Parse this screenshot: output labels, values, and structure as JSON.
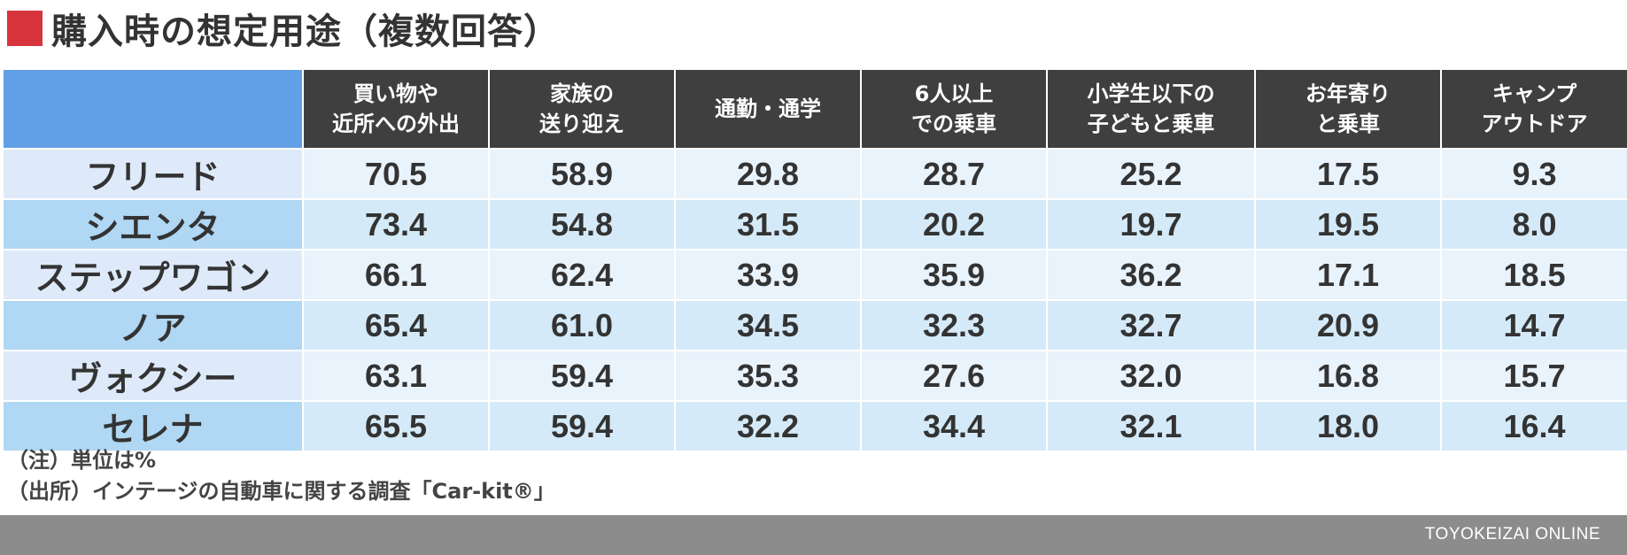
{
  "title": "購入時の想定用途（複数回答）",
  "colors": {
    "title_marker": "#d7343d",
    "corner_header": "#62a0e6",
    "column_header": "#3f3f3f",
    "row_label_light": "#deeaf9",
    "row_label_dark": "#b0d7f3",
    "cell_light": "#e9f3fc",
    "cell_dark": "#d5eaf8",
    "footer": "#8c8c8c"
  },
  "columns": [
    {
      "lines": [
        "買い物や",
        "近所への外出"
      ]
    },
    {
      "lines": [
        "家族の",
        "送り迎え"
      ]
    },
    {
      "lines": [
        "通勤・通学"
      ]
    },
    {
      "lines": [
        "6人以上",
        "での乗車"
      ]
    },
    {
      "lines": [
        "小学生以下の",
        "子どもと乗車"
      ]
    },
    {
      "lines": [
        "お年寄り",
        "と乗車"
      ]
    },
    {
      "lines": [
        "キャンプ",
        "アウトドア"
      ]
    }
  ],
  "chart_data": {
    "type": "table",
    "columns": [
      "買い物や近所への外出",
      "家族の送り迎え",
      "通勤・通学",
      "6人以上での乗車",
      "小学生以下の子どもと乗車",
      "お年寄りと乗車",
      "キャンプアウトドア"
    ],
    "rows": [
      {
        "label": "フリード",
        "values": [
          "70.5",
          "58.9",
          "29.8",
          "28.7",
          "25.2",
          "17.5",
          "9.3"
        ]
      },
      {
        "label": "シエンタ",
        "values": [
          "73.4",
          "54.8",
          "31.5",
          "20.2",
          "19.7",
          "19.5",
          "8.0"
        ]
      },
      {
        "label": "ステップワゴン",
        "values": [
          "66.1",
          "62.4",
          "33.9",
          "35.9",
          "36.2",
          "17.1",
          "18.5"
        ]
      },
      {
        "label": "ノア",
        "values": [
          "65.4",
          "61.0",
          "34.5",
          "32.3",
          "32.7",
          "20.9",
          "14.7"
        ]
      },
      {
        "label": "ヴォクシー",
        "values": [
          "63.1",
          "59.4",
          "35.3",
          "27.6",
          "32.0",
          "16.8",
          "15.7"
        ]
      },
      {
        "label": "セレナ",
        "values": [
          "65.5",
          "59.4",
          "32.2",
          "34.4",
          "32.1",
          "18.0",
          "16.4"
        ]
      }
    ]
  },
  "notes": {
    "unit": "（注）単位は%",
    "source": "（出所）インテージの自動車に関する調査「Car-kit®」"
  },
  "footer": {
    "brand": "TOYOKEIZAI ONLINE"
  }
}
